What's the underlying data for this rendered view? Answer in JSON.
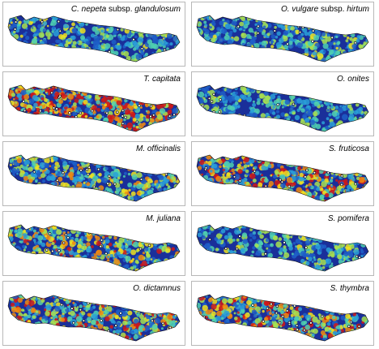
{
  "figure": {
    "panels": [
      {
        "name": "C. nepeta",
        "qualifier": "subsp.",
        "infra": "glandulosum",
        "intensity": 0.3
      },
      {
        "name": "O. vulgare",
        "qualifier": "subsp.",
        "infra": "hirtum",
        "intensity": 0.25
      },
      {
        "name": "T. capitata",
        "qualifier": "",
        "infra": "",
        "intensity": 0.8
      },
      {
        "name": "O. onites",
        "qualifier": "",
        "infra": "",
        "intensity": 0.2
      },
      {
        "name": "M. officinalis",
        "qualifier": "",
        "infra": "",
        "intensity": 0.45
      },
      {
        "name": "S. fruticosa",
        "qualifier": "",
        "infra": "",
        "intensity": 0.7
      },
      {
        "name": "M. juliana",
        "qualifier": "",
        "infra": "",
        "intensity": 0.55
      },
      {
        "name": "S. pomifera",
        "qualifier": "",
        "infra": "",
        "intensity": 0.22
      },
      {
        "name": "O. dictamnus",
        "qualifier": "",
        "infra": "",
        "intensity": 0.6
      },
      {
        "name": "S. thymbra",
        "qualifier": "",
        "infra": "",
        "intensity": 0.65
      }
    ],
    "colors": {
      "scale": [
        "#1a2f9a",
        "#1e5fc8",
        "#2aa0d8",
        "#4fd0b0",
        "#a8e050",
        "#f0e020",
        "#f08a10",
        "#d01818"
      ],
      "background": "#ffffff",
      "border": "#b8b8b8"
    }
  }
}
